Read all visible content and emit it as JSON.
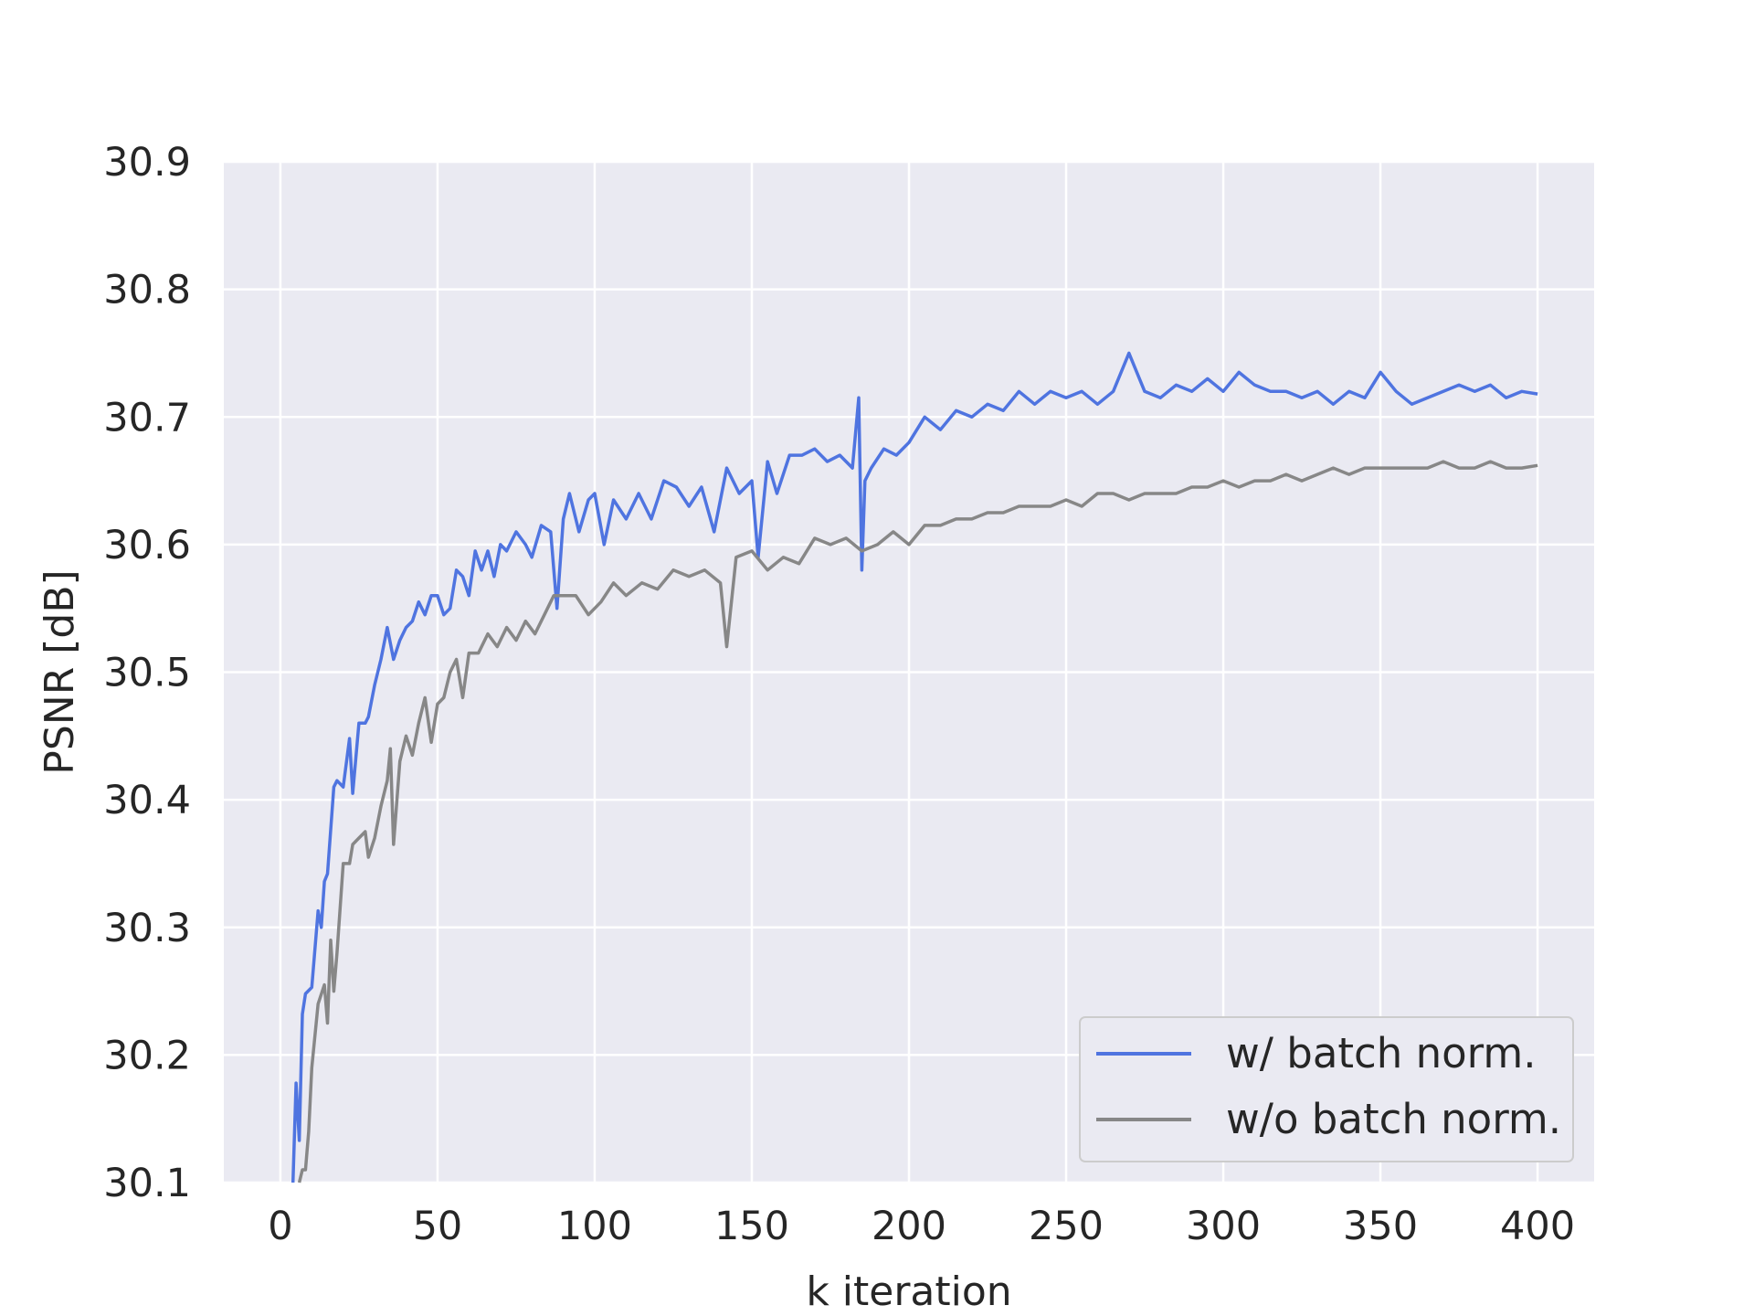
{
  "chart_data": {
    "type": "line",
    "xlabel": "k iteration",
    "ylabel": "PSNR [dB]",
    "xlim": [
      -18,
      418
    ],
    "ylim": [
      30.1,
      30.9
    ],
    "xticks": [
      0,
      50,
      100,
      150,
      200,
      250,
      300,
      350,
      400
    ],
    "yticks": [
      30.1,
      30.2,
      30.3,
      30.4,
      30.5,
      30.6,
      30.7,
      30.8,
      30.9
    ],
    "grid": true,
    "legend_position": "lower-right",
    "background_color": "#eaeaf2",
    "series": [
      {
        "name": "w/ batch norm.",
        "color": "#4f74e0",
        "x": [
          4,
          5,
          6,
          7,
          8,
          10,
          12,
          13,
          14,
          15,
          17,
          18,
          20,
          22,
          23,
          25,
          27,
          28,
          30,
          32,
          34,
          36,
          38,
          40,
          42,
          44,
          46,
          48,
          50,
          52,
          54,
          56,
          58,
          60,
          62,
          64,
          66,
          68,
          70,
          72,
          75,
          78,
          80,
          83,
          86,
          88,
          90,
          92,
          95,
          98,
          100,
          103,
          106,
          110,
          114,
          118,
          122,
          126,
          130,
          134,
          138,
          142,
          146,
          150,
          152,
          155,
          158,
          162,
          166,
          170,
          174,
          178,
          182,
          184,
          185,
          186,
          188,
          192,
          196,
          200,
          205,
          210,
          215,
          220,
          225,
          230,
          235,
          240,
          245,
          250,
          255,
          260,
          265,
          270,
          275,
          280,
          285,
          290,
          295,
          300,
          305,
          310,
          315,
          320,
          325,
          330,
          335,
          340,
          345,
          350,
          355,
          360,
          365,
          370,
          375,
          380,
          385,
          390,
          395,
          400
        ],
        "values": [
          30.1,
          30.178,
          30.133,
          30.232,
          30.248,
          30.253,
          30.313,
          30.3,
          30.336,
          30.342,
          30.41,
          30.415,
          30.41,
          30.448,
          30.405,
          30.46,
          30.46,
          30.465,
          30.49,
          30.51,
          30.535,
          30.51,
          30.525,
          30.535,
          30.54,
          30.555,
          30.545,
          30.56,
          30.56,
          30.545,
          30.55,
          30.58,
          30.575,
          30.56,
          30.595,
          30.58,
          30.595,
          30.575,
          30.6,
          30.595,
          30.61,
          30.6,
          30.59,
          30.615,
          30.61,
          30.55,
          30.62,
          30.64,
          30.61,
          30.635,
          30.64,
          30.6,
          30.635,
          30.62,
          30.64,
          30.62,
          30.65,
          30.645,
          30.63,
          30.645,
          30.61,
          30.66,
          30.64,
          30.65,
          30.59,
          30.665,
          30.64,
          30.67,
          30.67,
          30.675,
          30.665,
          30.67,
          30.66,
          30.715,
          30.58,
          30.65,
          30.66,
          30.675,
          30.67,
          30.68,
          30.7,
          30.69,
          30.705,
          30.7,
          30.71,
          30.705,
          30.72,
          30.71,
          30.72,
          30.715,
          30.72,
          30.71,
          30.72,
          30.75,
          30.72,
          30.715,
          30.725,
          30.72,
          30.73,
          30.72,
          30.735,
          30.725,
          30.72,
          30.72,
          30.715,
          30.72,
          30.71,
          30.72,
          30.715,
          30.735,
          30.72,
          30.71,
          30.715,
          30.72,
          30.725,
          30.72,
          30.725,
          30.715,
          30.72,
          30.718
        ]
      },
      {
        "name": "w/o batch norm.",
        "color": "#878787",
        "x": [
          6,
          7,
          8,
          9,
          10,
          12,
          14,
          15,
          16,
          17,
          18,
          20,
          22,
          23,
          25,
          27,
          28,
          30,
          32,
          34,
          35,
          36,
          38,
          40,
          42,
          44,
          46,
          48,
          50,
          52,
          54,
          56,
          58,
          60,
          63,
          66,
          69,
          72,
          75,
          78,
          81,
          84,
          87,
          90,
          94,
          98,
          102,
          106,
          110,
          115,
          120,
          125,
          130,
          135,
          140,
          142,
          145,
          150,
          155,
          160,
          165,
          170,
          175,
          180,
          185,
          190,
          195,
          200,
          205,
          210,
          215,
          220,
          225,
          230,
          235,
          240,
          245,
          250,
          255,
          260,
          265,
          270,
          275,
          280,
          285,
          290,
          295,
          300,
          305,
          310,
          315,
          320,
          325,
          330,
          335,
          340,
          345,
          350,
          355,
          360,
          365,
          370,
          375,
          380,
          385,
          390,
          395,
          400
        ],
        "values": [
          30.1,
          30.11,
          30.11,
          30.14,
          30.19,
          30.24,
          30.255,
          30.225,
          30.29,
          30.25,
          30.28,
          30.35,
          30.35,
          30.365,
          30.37,
          30.375,
          30.355,
          30.37,
          30.395,
          30.415,
          30.44,
          30.365,
          30.43,
          30.45,
          30.435,
          30.46,
          30.48,
          30.445,
          30.475,
          30.48,
          30.5,
          30.51,
          30.48,
          30.515,
          30.515,
          30.53,
          30.52,
          30.535,
          30.525,
          30.54,
          30.53,
          30.545,
          30.56,
          30.56,
          30.56,
          30.545,
          30.555,
          30.57,
          30.56,
          30.57,
          30.565,
          30.58,
          30.575,
          30.58,
          30.57,
          30.52,
          30.59,
          30.595,
          30.58,
          30.59,
          30.585,
          30.605,
          30.6,
          30.605,
          30.595,
          30.6,
          30.61,
          30.6,
          30.615,
          30.615,
          30.62,
          30.62,
          30.625,
          30.625,
          30.63,
          30.63,
          30.63,
          30.635,
          30.63,
          30.64,
          30.64,
          30.635,
          30.64,
          30.64,
          30.64,
          30.645,
          30.645,
          30.65,
          30.645,
          30.65,
          30.65,
          30.655,
          30.65,
          30.655,
          30.66,
          30.655,
          30.66,
          30.66,
          30.66,
          30.66,
          30.66,
          30.665,
          30.66,
          30.66,
          30.665,
          30.66,
          30.66,
          30.662
        ]
      }
    ]
  }
}
